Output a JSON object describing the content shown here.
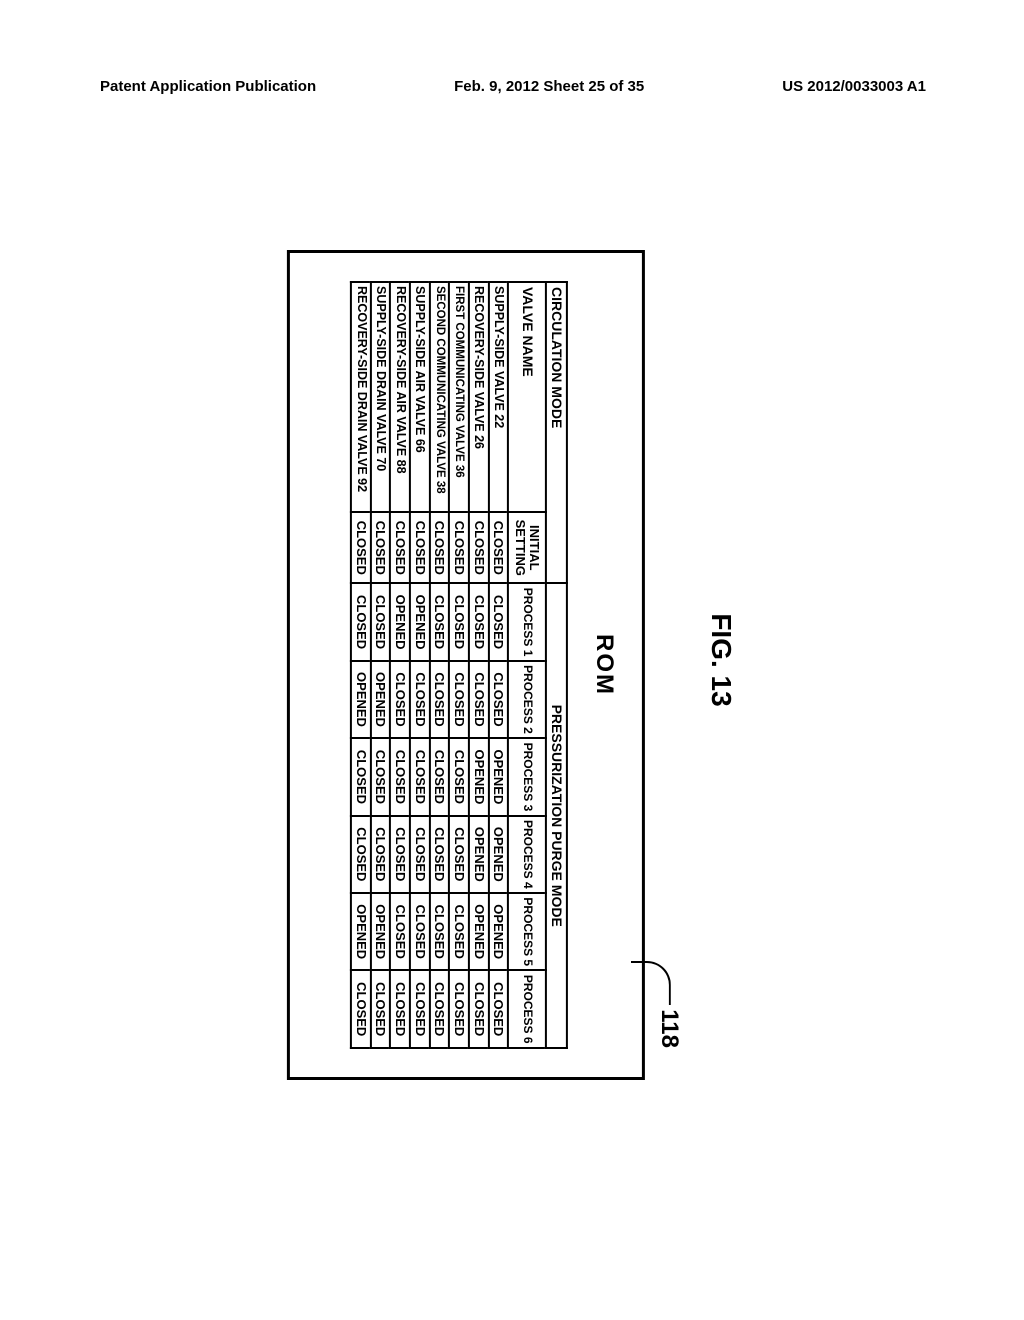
{
  "header": {
    "left": "Patent Application Publication",
    "center": "Feb. 9, 2012  Sheet 25 of 35",
    "right": "US 2012/0033003 A1"
  },
  "figure": {
    "label": "FIG. 13",
    "ref_num": "118",
    "rom_title": "ROM"
  },
  "table": {
    "mode_header": "CIRCULATION MODE",
    "purge_header": "PRESSURIZATION PURGE MODE",
    "valve_name_header": "VALVE NAME",
    "initial_header": "INITIAL SETTING",
    "process_headers": [
      "PROCESS 1",
      "PROCESS 2",
      "PROCESS 3",
      "PROCESS 4",
      "PROCESS 5",
      "PROCESS 6"
    ],
    "rows": [
      {
        "name": "SUPPLY-SIDE VALVE 22",
        "tiny": false,
        "init": "CLOSED",
        "p": [
          "CLOSED",
          "CLOSED",
          "OPENED",
          "OPENED",
          "OPENED",
          "CLOSED"
        ]
      },
      {
        "name": "RECOVERY-SIDE VALVE 26",
        "tiny": false,
        "init": "CLOSED",
        "p": [
          "CLOSED",
          "CLOSED",
          "OPENED",
          "OPENED",
          "OPENED",
          "CLOSED"
        ]
      },
      {
        "name": "FIRST COMMUNICATING VALVE 36",
        "tiny": true,
        "init": "CLOSED",
        "p": [
          "CLOSED",
          "CLOSED",
          "CLOSED",
          "CLOSED",
          "CLOSED",
          "CLOSED"
        ]
      },
      {
        "name": "SECOND COMMUNICATING VALVE 38",
        "tiny": true,
        "init": "CLOSED",
        "p": [
          "CLOSED",
          "CLOSED",
          "CLOSED",
          "CLOSED",
          "CLOSED",
          "CLOSED"
        ]
      },
      {
        "name": "SUPPLY-SIDE AIR VALVE 66",
        "tiny": false,
        "init": "CLOSED",
        "p": [
          "OPENED",
          "CLOSED",
          "CLOSED",
          "CLOSED",
          "CLOSED",
          "CLOSED"
        ]
      },
      {
        "name": "RECOVERY-SIDE AIR VALVE 88",
        "tiny": false,
        "init": "CLOSED",
        "p": [
          "OPENED",
          "CLOSED",
          "CLOSED",
          "CLOSED",
          "CLOSED",
          "CLOSED"
        ]
      },
      {
        "name": "SUPPLY-SIDE DRAIN VALVE 70",
        "tiny": false,
        "init": "CLOSED",
        "p": [
          "CLOSED",
          "OPENED",
          "CLOSED",
          "CLOSED",
          "OPENED",
          "CLOSED"
        ]
      },
      {
        "name": "RECOVERY-SIDE DRAIN VALVE 92",
        "tiny": false,
        "init": "CLOSED",
        "p": [
          "CLOSED",
          "OPENED",
          "CLOSED",
          "CLOSED",
          "OPENED",
          "CLOSED"
        ]
      }
    ]
  }
}
